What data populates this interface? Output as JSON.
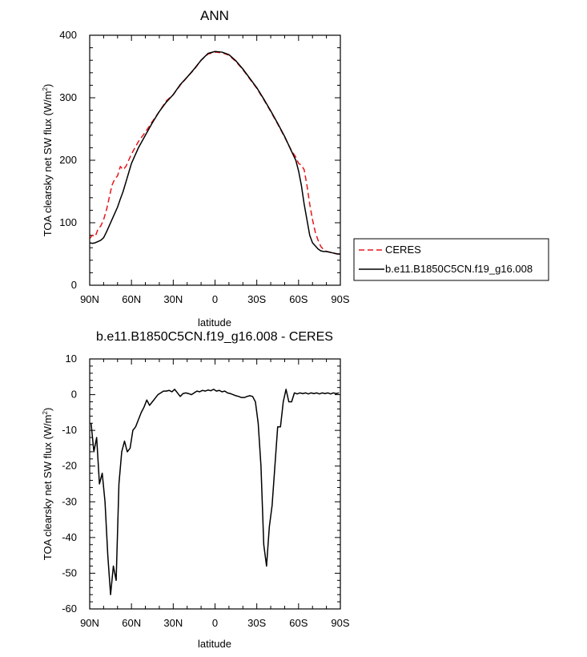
{
  "chart_data": [
    {
      "type": "line",
      "title": "ANN",
      "xlabel": "latitude",
      "ylabel_main": "TOA clearsky net SW flux (W/m",
      "ylabel_sup": "2",
      "ylabel_tail": ")",
      "xlim": [
        90,
        -90
      ],
      "ylim": [
        0,
        400
      ],
      "xticks": [
        {
          "value": 90,
          "label": "90N"
        },
        {
          "value": 60,
          "label": "60N"
        },
        {
          "value": 30,
          "label": "30N"
        },
        {
          "value": 0,
          "label": "0"
        },
        {
          "value": -30,
          "label": "30S"
        },
        {
          "value": -60,
          "label": "60S"
        },
        {
          "value": -90,
          "label": "90S"
        }
      ],
      "yticks": [
        0,
        100,
        200,
        300,
        400
      ],
      "legend": "outside-right",
      "series": [
        {
          "name": "CERES",
          "color": "#e8161b",
          "dash": "dashed",
          "x": [
            90,
            88,
            86,
            84,
            82,
            80,
            78,
            76,
            74,
            72,
            70,
            68,
            66,
            64,
            62,
            60,
            55,
            50,
            45,
            40,
            35,
            30,
            25,
            20,
            15,
            10,
            5,
            0,
            -5,
            -10,
            -15,
            -20,
            -25,
            -30,
            -35,
            -40,
            -45,
            -50,
            -55,
            -58,
            -60,
            -62,
            -64,
            -66,
            -68,
            -70,
            -72,
            -74,
            -76,
            -78,
            -80,
            -82,
            -84,
            -86,
            -88,
            -90
          ],
          "y": [
            75,
            80,
            78,
            90,
            95,
            105,
            120,
            140,
            160,
            170,
            175,
            190,
            185,
            190,
            200,
            210,
            230,
            245,
            262,
            278,
            295,
            305,
            320,
            333,
            345,
            360,
            370,
            373,
            372,
            368,
            358,
            345,
            330,
            315,
            297,
            278,
            258,
            237,
            215,
            205,
            195,
            192,
            185,
            160,
            130,
            105,
            85,
            72,
            62,
            57,
            54,
            53,
            52,
            51,
            50,
            50
          ]
        },
        {
          "name": "b.e11.B1850C5CN.f19_g16.008",
          "color": "#000000",
          "dash": "solid",
          "x": [
            90,
            88,
            86,
            84,
            82,
            80,
            78,
            76,
            74,
            72,
            70,
            68,
            66,
            64,
            62,
            60,
            55,
            50,
            45,
            40,
            35,
            30,
            25,
            20,
            15,
            10,
            5,
            0,
            -5,
            -10,
            -15,
            -20,
            -25,
            -30,
            -35,
            -40,
            -45,
            -50,
            -55,
            -58,
            -60,
            -62,
            -64,
            -66,
            -68,
            -70,
            -72,
            -74,
            -76,
            -78,
            -80,
            -82,
            -84,
            -86,
            -88,
            -90
          ],
          "y": [
            68,
            67,
            68,
            70,
            72,
            76,
            85,
            95,
            105,
            115,
            125,
            138,
            150,
            165,
            180,
            195,
            220,
            240,
            260,
            278,
            293,
            305,
            321,
            333,
            346,
            360,
            371,
            374,
            373,
            369,
            359,
            346,
            331,
            316,
            298,
            279,
            259,
            238,
            214,
            200,
            183,
            160,
            130,
            105,
            80,
            68,
            63,
            58,
            55,
            54,
            54,
            53,
            52,
            51,
            50,
            50
          ]
        }
      ]
    },
    {
      "type": "line",
      "title": "b.e11.B1850C5CN.f19_g16.008 - CERES",
      "xlabel": "latitude",
      "ylabel_main": "TOA clearsky net SW flux (W/m",
      "ylabel_sup": "2",
      "ylabel_tail": ")",
      "xlim": [
        90,
        -90
      ],
      "ylim": [
        -60,
        10
      ],
      "xticks": [
        {
          "value": 90,
          "label": "90N"
        },
        {
          "value": 60,
          "label": "60N"
        },
        {
          "value": 30,
          "label": "30N"
        },
        {
          "value": 0,
          "label": "0"
        },
        {
          "value": -30,
          "label": "30S"
        },
        {
          "value": -60,
          "label": "60S"
        },
        {
          "value": -90,
          "label": "90S"
        }
      ],
      "yticks": [
        10,
        0,
        -10,
        -20,
        -30,
        -40,
        -50,
        -60
      ],
      "series": [
        {
          "color": "#000000",
          "dash": "solid",
          "x": [
            89,
            87,
            85,
            83,
            81,
            79,
            77,
            75,
            73,
            71,
            69,
            67,
            65,
            63,
            61,
            59,
            57,
            55,
            53,
            51,
            49,
            47,
            45,
            43,
            41,
            39,
            37,
            35,
            33,
            31,
            29,
            27,
            25,
            23,
            21,
            19,
            17,
            15,
            13,
            11,
            9,
            7,
            5,
            3,
            1,
            -1,
            -3,
            -5,
            -7,
            -9,
            -11,
            -13,
            -15,
            -17,
            -19,
            -21,
            -23,
            -25,
            -27,
            -29,
            -31,
            -33,
            -35,
            -37,
            -39,
            -41,
            -43,
            -45,
            -47,
            -49,
            -51,
            -53,
            -55,
            -57,
            -59,
            -61,
            -63,
            -65,
            -67,
            -69,
            -71,
            -73,
            -75,
            -77,
            -79,
            -81,
            -83,
            -85,
            -87,
            -89
          ],
          "y": [
            -8,
            -16,
            -12,
            -25,
            -22,
            -30,
            -45,
            -56,
            -48,
            -52,
            -25,
            -16,
            -13,
            -16,
            -15,
            -10,
            -9,
            -7,
            -5,
            -3.5,
            -1.5,
            -3,
            -2,
            -1,
            0,
            0.5,
            1,
            1,
            1.2,
            0.8,
            1.5,
            0.5,
            -0.5,
            0.3,
            0.5,
            0.3,
            0,
            0.5,
            1,
            0.8,
            1.2,
            1,
            1.3,
            1.1,
            1.5,
            1,
            1.2,
            0.8,
            1,
            0.5,
            0.3,
            0,
            -0.3,
            -0.5,
            -0.8,
            -0.8,
            -0.5,
            -0.3,
            -0.5,
            -2,
            -8,
            -20,
            -42,
            -48,
            -37,
            -31,
            -20,
            -9,
            -9,
            -2,
            1.5,
            -2,
            -2,
            0.5,
            0.2,
            0.5,
            0.3,
            0.5,
            0.2,
            0.5,
            0.3,
            0.5,
            0.2,
            0.5,
            0.3,
            0.5,
            0.2,
            0.5,
            0.3,
            0.5
          ]
        }
      ]
    }
  ]
}
